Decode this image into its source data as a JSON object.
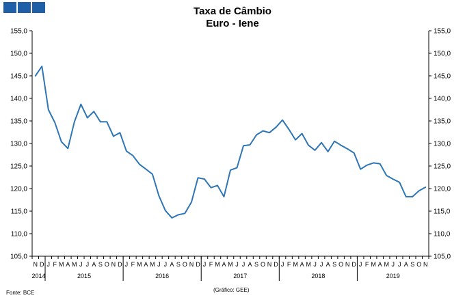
{
  "header": {
    "title_line1": "Taxa de Câmbio",
    "title_line2": "Euro - Iene"
  },
  "footer": {
    "source": "Fonte: BCE",
    "credit": "(Gráfico: GEE)"
  },
  "colors": {
    "line": "#2e75b6",
    "logo": "#1f5fa8"
  },
  "chart_data": {
    "type": "line",
    "title": "Taxa de Câmbio Euro - Iene",
    "ylim": [
      105,
      155
    ],
    "ytick_step": 5,
    "ytick_labels": [
      "105,0",
      "110,0",
      "115,0",
      "120,0",
      "125,0",
      "130,0",
      "135,0",
      "140,0",
      "145,0",
      "150,0",
      "155,0"
    ],
    "dual_y_axis": true,
    "grid": false,
    "month_labels": [
      "N",
      "D",
      "J",
      "F",
      "M",
      "A",
      "M",
      "J",
      "J",
      "A",
      "S",
      "O",
      "N",
      "D",
      "J",
      "F",
      "M",
      "A",
      "M",
      "J",
      "J",
      "A",
      "S",
      "O",
      "N",
      "D",
      "J",
      "F",
      "M",
      "A",
      "M",
      "J",
      "J",
      "A",
      "S",
      "O",
      "N",
      "D",
      "J",
      "F",
      "M",
      "A",
      "M",
      "J",
      "J",
      "A",
      "S",
      "O",
      "N",
      "D",
      "J",
      "F",
      "M",
      "A",
      "M",
      "J",
      "J",
      "A",
      "S",
      "O",
      "N"
    ],
    "year_groups": [
      {
        "label": "2014",
        "start": 0,
        "end": 1
      },
      {
        "label": "2015",
        "start": 2,
        "end": 13
      },
      {
        "label": "2016",
        "start": 14,
        "end": 25
      },
      {
        "label": "2017",
        "start": 26,
        "end": 37
      },
      {
        "label": "2018",
        "start": 38,
        "end": 49
      },
      {
        "label": "2019",
        "start": 50,
        "end": 60
      }
    ],
    "series": [
      {
        "values": [
          145.0,
          147.1,
          137.5,
          134.6,
          130.4,
          128.9,
          134.8,
          138.7,
          135.7,
          137.1,
          134.8,
          134.8,
          131.6,
          132.4,
          128.3,
          127.3,
          125.4,
          124.3,
          123.2,
          118.4,
          115.1,
          113.5,
          114.2,
          114.5,
          117.0,
          122.4,
          122.1,
          120.2,
          120.7,
          118.2,
          124.1,
          124.6,
          129.5,
          129.7,
          131.9,
          132.8,
          132.4,
          133.6,
          135.2,
          133.1,
          130.8,
          132.2,
          129.6,
          128.5,
          130.2,
          128.2,
          130.5,
          129.6,
          128.8,
          127.9,
          124.3,
          125.2,
          125.7,
          125.5,
          122.9,
          122.1,
          121.4,
          118.2,
          118.2,
          119.5,
          120.3
        ]
      }
    ]
  }
}
